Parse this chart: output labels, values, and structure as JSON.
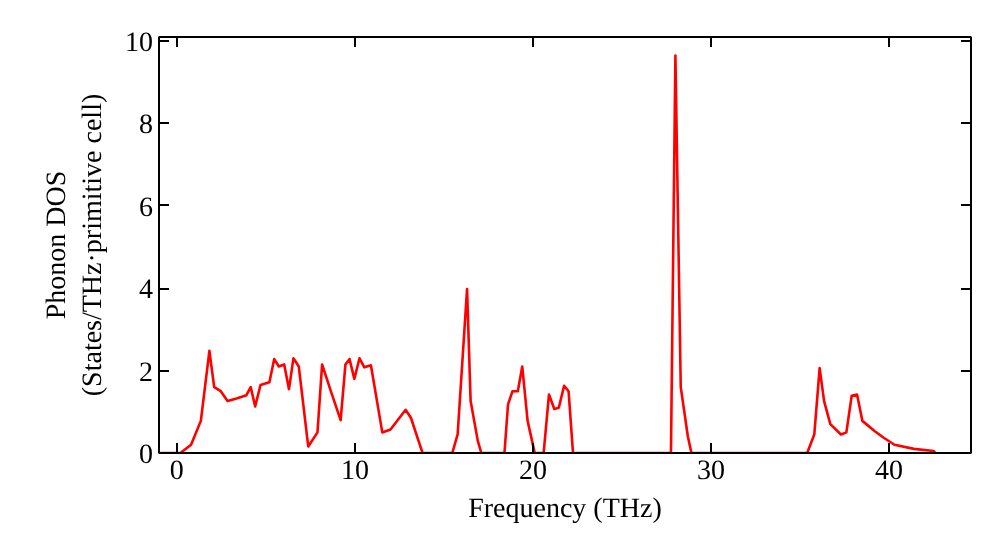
{
  "chart_data": {
    "type": "line",
    "xlabel": "Frequency (THz)",
    "ylabel": "Phonon DOS\n(States/THz·primitive cell)",
    "xlim": [
      -1,
      44.6
    ],
    "ylim": [
      0,
      10.1
    ],
    "xticks": [
      0,
      10,
      20,
      30,
      40
    ],
    "yticks": [
      0,
      2,
      4,
      6,
      8,
      10
    ],
    "grid": false,
    "marker": "none",
    "line_style": "solid",
    "series": [
      {
        "color": "#ff0000",
        "x": [
          -0.9,
          0.2,
          0.8,
          1.35,
          1.83,
          2.1,
          2.47,
          2.85,
          3.4,
          3.9,
          4.15,
          4.4,
          4.7,
          5.2,
          5.47,
          5.73,
          6.03,
          6.3,
          6.55,
          6.85,
          7.38,
          7.9,
          8.16,
          8.65,
          9.2,
          9.47,
          9.7,
          9.97,
          10.26,
          10.53,
          10.9,
          11.54,
          12.0,
          12.85,
          13.15,
          13.8,
          15.47,
          15.77,
          16.3,
          16.5,
          16.9,
          17.1,
          18.4,
          18.6,
          18.85,
          19.15,
          19.4,
          19.7,
          20.1,
          20.6,
          20.9,
          21.2,
          21.45,
          21.75,
          22.0,
          22.25,
          27.75,
          28.0,
          28.3,
          28.7,
          28.9,
          35.4,
          35.8,
          36.1,
          36.35,
          36.7,
          37.3,
          37.6,
          37.9,
          38.2,
          38.5,
          39.2,
          39.7,
          40.3,
          41.4,
          42.5,
          42.6
        ],
        "values": [
          0,
          0,
          0.2,
          0.78,
          2.48,
          1.6,
          1.5,
          1.26,
          1.33,
          1.4,
          1.6,
          1.13,
          1.65,
          1.72,
          2.28,
          2.1,
          2.15,
          1.55,
          2.3,
          2.1,
          0.16,
          0.5,
          2.15,
          1.5,
          0.8,
          2.15,
          2.28,
          1.8,
          2.3,
          2.08,
          2.13,
          0.5,
          0.57,
          1.05,
          0.85,
          0,
          0,
          0.45,
          3.98,
          1.26,
          0.3,
          0,
          0,
          1.18,
          1.5,
          1.5,
          2.1,
          0.78,
          0,
          0,
          1.42,
          1.07,
          1.1,
          1.63,
          1.5,
          0,
          0,
          9.65,
          1.6,
          0.4,
          0,
          0,
          0.45,
          2.06,
          1.26,
          0.7,
          0.45,
          0.5,
          1.39,
          1.42,
          0.78,
          0.53,
          0.37,
          0.2,
          0.1,
          0.05,
          0
        ]
      }
    ]
  }
}
